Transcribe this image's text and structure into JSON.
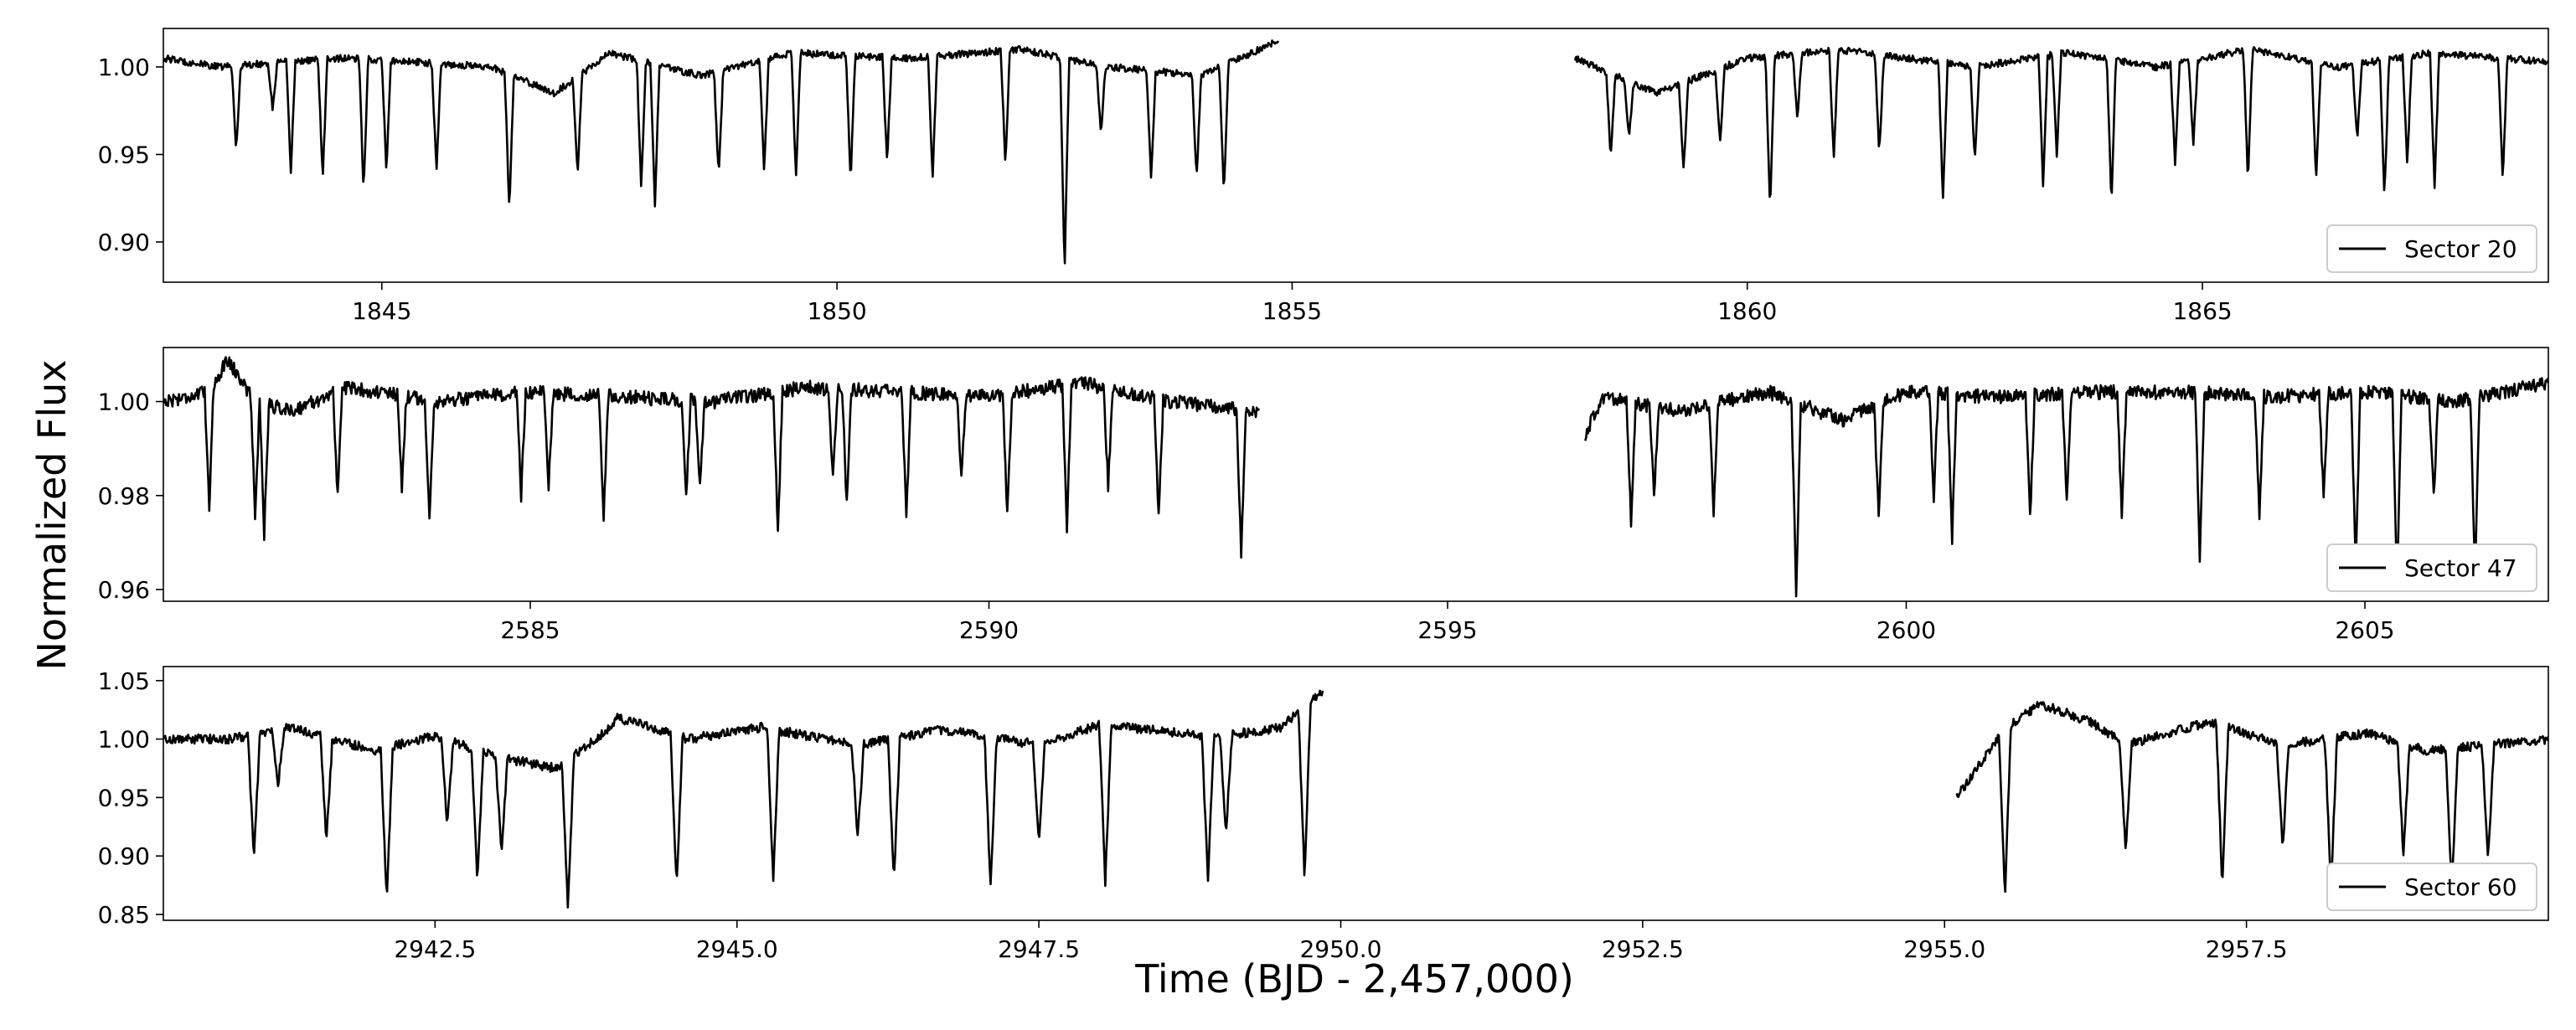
{
  "figure": {
    "ylabel": "Normalized Flux",
    "xlabel": "Time (BJD - 2,457,000)"
  },
  "colors": {
    "line": "#000000",
    "frame": "#000000",
    "background": "#ffffff",
    "legend_border": "#cccccc"
  },
  "chart_data": [
    {
      "type": "line",
      "series": [
        {
          "name": "Sector 20"
        }
      ],
      "xlim": [
        1842.6,
        1868.8
      ],
      "ylim": [
        0.877,
        1.022
      ],
      "xticks": [
        1845,
        1850,
        1855,
        1860,
        1865
      ],
      "xtick_labels": [
        "1845",
        "1850",
        "1855",
        "1860",
        "1865"
      ],
      "yticks": [
        0.9,
        0.95,
        1.0
      ],
      "ytick_labels": [
        "0.90",
        "0.95",
        "1.00"
      ],
      "legend_position": "lower-right",
      "baseline": 1.0,
      "noise": 0.002,
      "gaps": [
        [
          1854.85,
          1858.1
        ]
      ],
      "segments": [
        [
          1842.6,
          1854.85
        ],
        [
          1858.1,
          1868.8
        ]
      ],
      "trend_points": [
        [
          1842.6,
          1.005
        ],
        [
          1843.2,
          1.0
        ],
        [
          1844.5,
          1.005
        ],
        [
          1845.0,
          1.004
        ],
        [
          1846.2,
          1.0
        ],
        [
          1846.9,
          0.985
        ],
        [
          1847.5,
          1.008
        ],
        [
          1848.5,
          0.995
        ],
        [
          1849.5,
          1.008
        ],
        [
          1850.8,
          1.005
        ],
        [
          1852.0,
          1.01
        ],
        [
          1853.0,
          1.0
        ],
        [
          1854.0,
          0.995
        ],
        [
          1854.85,
          1.015
        ],
        [
          1858.1,
          1.005
        ],
        [
          1859.0,
          0.985
        ],
        [
          1860.0,
          1.005
        ],
        [
          1861.0,
          1.01
        ],
        [
          1862.5,
          1.0
        ],
        [
          1863.5,
          1.008
        ],
        [
          1864.5,
          1.0
        ],
        [
          1865.5,
          1.01
        ],
        [
          1866.5,
          1.0
        ],
        [
          1867.5,
          1.008
        ],
        [
          1868.8,
          1.003
        ]
      ],
      "dips": [
        [
          1843.4,
          0.952
        ],
        [
          1843.8,
          0.975
        ],
        [
          1844.0,
          0.94
        ],
        [
          1844.35,
          0.935
        ],
        [
          1844.8,
          0.928
        ],
        [
          1845.05,
          0.94
        ],
        [
          1845.6,
          0.94
        ],
        [
          1846.4,
          0.918
        ],
        [
          1847.15,
          0.938
        ],
        [
          1847.85,
          0.93
        ],
        [
          1848.0,
          0.92
        ],
        [
          1848.7,
          0.937
        ],
        [
          1849.2,
          0.94
        ],
        [
          1849.55,
          0.935
        ],
        [
          1850.15,
          0.935
        ],
        [
          1850.55,
          0.945
        ],
        [
          1851.05,
          0.935
        ],
        [
          1851.85,
          0.945
        ],
        [
          1852.5,
          0.883
        ],
        [
          1852.9,
          0.96
        ],
        [
          1853.45,
          0.935
        ],
        [
          1853.95,
          0.935
        ],
        [
          1854.25,
          0.925
        ],
        [
          1858.5,
          0.948
        ],
        [
          1858.7,
          0.96
        ],
        [
          1859.3,
          0.94
        ],
        [
          1859.7,
          0.955
        ],
        [
          1860.25,
          0.917
        ],
        [
          1860.55,
          0.97
        ],
        [
          1860.95,
          0.948
        ],
        [
          1861.45,
          0.95
        ],
        [
          1862.15,
          0.923
        ],
        [
          1862.5,
          0.945
        ],
        [
          1863.25,
          0.93
        ],
        [
          1863.4,
          0.95
        ],
        [
          1864.0,
          0.923
        ],
        [
          1864.7,
          0.945
        ],
        [
          1864.9,
          0.955
        ],
        [
          1865.5,
          0.935
        ],
        [
          1866.25,
          0.935
        ],
        [
          1866.7,
          0.958
        ],
        [
          1867.0,
          0.925
        ],
        [
          1867.25,
          0.945
        ],
        [
          1867.55,
          0.93
        ],
        [
          1868.3,
          0.935
        ]
      ]
    },
    {
      "type": "line",
      "series": [
        {
          "name": "Sector 47"
        }
      ],
      "xlim": [
        2581.0,
        2607.0
      ],
      "ylim": [
        0.9575,
        1.0115
      ],
      "xticks": [
        2585,
        2590,
        2595,
        2600,
        2605
      ],
      "xtick_labels": [
        "2585",
        "2590",
        "2595",
        "2600",
        "2605"
      ],
      "yticks": [
        0.96,
        0.98,
        1.0
      ],
      "ytick_labels": [
        "0.96",
        "0.98",
        "1.00"
      ],
      "legend_position": "lower-right",
      "baseline": 1.0,
      "noise": 0.0015,
      "gaps": [
        [
          2592.95,
          2596.5
        ]
      ],
      "segments": [
        [
          2581.0,
          2592.95
        ],
        [
          2596.5,
          2607.0
        ]
      ],
      "trend_points": [
        [
          2581.0,
          1.0
        ],
        [
          2581.5,
          1.002
        ],
        [
          2581.7,
          1.009
        ],
        [
          2582.0,
          1.0
        ],
        [
          2582.4,
          0.998
        ],
        [
          2583.0,
          1.003
        ],
        [
          2584.0,
          1.0
        ],
        [
          2585.0,
          1.002
        ],
        [
          2586.0,
          1.001
        ],
        [
          2587.0,
          1.0
        ],
        [
          2588.0,
          1.003
        ],
        [
          2589.0,
          1.002
        ],
        [
          2590.0,
          1.001
        ],
        [
          2591.0,
          1.004
        ],
        [
          2592.0,
          1.0
        ],
        [
          2592.95,
          0.998
        ],
        [
          2596.5,
          0.993
        ],
        [
          2596.7,
          1.001
        ],
        [
          2597.5,
          0.998
        ],
        [
          2598.5,
          1.002
        ],
        [
          2599.3,
          0.996
        ],
        [
          2600.0,
          1.002
        ],
        [
          2601.0,
          1.001
        ],
        [
          2602.0,
          1.002
        ],
        [
          2603.0,
          1.002
        ],
        [
          2604.0,
          1.001
        ],
        [
          2605.0,
          1.002
        ],
        [
          2606.0,
          1.0
        ],
        [
          2607.0,
          1.004
        ]
      ],
      "dips": [
        [
          2581.5,
          0.978
        ],
        [
          2582.0,
          0.976
        ],
        [
          2582.1,
          0.972
        ],
        [
          2582.9,
          0.98
        ],
        [
          2583.6,
          0.982
        ],
        [
          2583.9,
          0.974
        ],
        [
          2584.9,
          0.98
        ],
        [
          2585.2,
          0.982
        ],
        [
          2585.8,
          0.975
        ],
        [
          2586.7,
          0.98
        ],
        [
          2586.85,
          0.982
        ],
        [
          2587.7,
          0.972
        ],
        [
          2588.3,
          0.983
        ],
        [
          2588.45,
          0.978
        ],
        [
          2589.1,
          0.975
        ],
        [
          2589.7,
          0.983
        ],
        [
          2590.2,
          0.976
        ],
        [
          2590.85,
          0.973
        ],
        [
          2591.3,
          0.982
        ],
        [
          2591.85,
          0.975
        ],
        [
          2592.75,
          0.967
        ],
        [
          2597.0,
          0.974
        ],
        [
          2597.25,
          0.98
        ],
        [
          2597.9,
          0.976
        ],
        [
          2598.8,
          0.959
        ],
        [
          2599.7,
          0.975
        ],
        [
          2600.3,
          0.98
        ],
        [
          2600.5,
          0.97
        ],
        [
          2601.35,
          0.975
        ],
        [
          2601.75,
          0.98
        ],
        [
          2602.35,
          0.975
        ],
        [
          2603.2,
          0.967
        ],
        [
          2603.85,
          0.976
        ],
        [
          2604.55,
          0.98
        ],
        [
          2604.9,
          0.965
        ],
        [
          2605.35,
          0.96
        ],
        [
          2605.75,
          0.98
        ],
        [
          2606.2,
          0.962
        ]
      ]
    },
    {
      "type": "line",
      "series": [
        {
          "name": "Sector 60"
        }
      ],
      "xlim": [
        2940.25,
        2960.0
      ],
      "ylim": [
        0.845,
        1.062
      ],
      "xticks": [
        2942.5,
        2945.0,
        2947.5,
        2950.0,
        2952.5,
        2955.0,
        2957.5
      ],
      "xtick_labels": [
        "2942.5",
        "2945.0",
        "2947.5",
        "2950.0",
        "2952.5",
        "2955.0",
        "2957.5"
      ],
      "yticks": [
        0.85,
        0.9,
        0.95,
        1.0,
        1.05
      ],
      "ytick_labels": [
        "0.85",
        "0.90",
        "0.95",
        "1.00",
        "1.05"
      ],
      "legend_position": "lower-right",
      "baseline": 1.0,
      "noise": 0.004,
      "gaps": [
        [
          2949.85,
          2955.1
        ]
      ],
      "segments": [
        [
          2940.25,
          2949.85
        ],
        [
          2955.1,
          2960.0
        ]
      ],
      "trend_points": [
        [
          2940.25,
          1.0
        ],
        [
          2940.8,
          1.0
        ],
        [
          2941.3,
          1.01
        ],
        [
          2942.0,
          0.99
        ],
        [
          2942.5,
          1.003
        ],
        [
          2943.0,
          0.985
        ],
        [
          2943.5,
          0.975
        ],
        [
          2943.9,
          1.005
        ],
        [
          2944.0,
          1.018
        ],
        [
          2944.3,
          1.01
        ],
        [
          2944.6,
          1.0
        ],
        [
          2945.2,
          1.01
        ],
        [
          2946.0,
          0.995
        ],
        [
          2946.7,
          1.008
        ],
        [
          2947.5,
          0.995
        ],
        [
          2948.0,
          1.012
        ],
        [
          2949.0,
          1.002
        ],
        [
          2949.5,
          1.01
        ],
        [
          2949.85,
          1.04
        ],
        [
          2955.1,
          0.95
        ],
        [
          2955.5,
          1.01
        ],
        [
          2955.8,
          1.03
        ],
        [
          2956.2,
          1.015
        ],
        [
          2956.5,
          0.995
        ],
        [
          2957.2,
          1.015
        ],
        [
          2957.8,
          0.995
        ],
        [
          2958.5,
          1.005
        ],
        [
          2959.0,
          0.99
        ],
        [
          2960.0,
          1.0
        ]
      ],
      "dips": [
        [
          2941.0,
          0.898
        ],
        [
          2941.2,
          0.96
        ],
        [
          2941.6,
          0.912
        ],
        [
          2942.1,
          0.86
        ],
        [
          2942.6,
          0.93
        ],
        [
          2942.85,
          0.88
        ],
        [
          2943.05,
          0.905
        ],
        [
          2943.6,
          0.855
        ],
        [
          2944.5,
          0.873
        ],
        [
          2945.3,
          0.88
        ],
        [
          2946.0,
          0.915
        ],
        [
          2946.3,
          0.88
        ],
        [
          2947.1,
          0.873
        ],
        [
          2947.5,
          0.91
        ],
        [
          2948.05,
          0.878
        ],
        [
          2948.9,
          0.878
        ],
        [
          2949.05,
          0.92
        ],
        [
          2949.7,
          0.88
        ],
        [
          2955.5,
          0.865
        ],
        [
          2956.5,
          0.905
        ],
        [
          2957.3,
          0.875
        ],
        [
          2957.8,
          0.905
        ],
        [
          2958.2,
          0.87
        ],
        [
          2958.8,
          0.9
        ],
        [
          2959.2,
          0.87
        ],
        [
          2959.5,
          0.895
        ]
      ]
    }
  ]
}
